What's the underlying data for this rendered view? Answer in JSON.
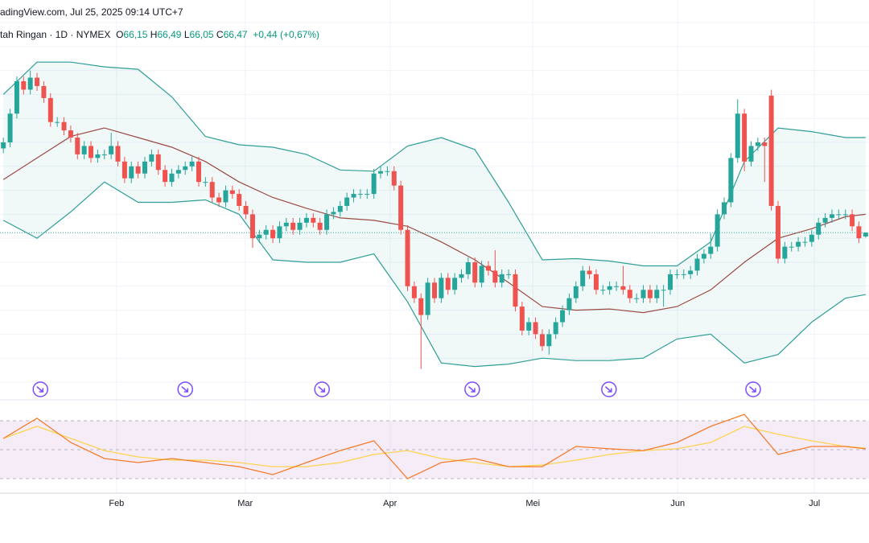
{
  "header": {
    "source": "adingView.com, Jul 25, 2025 09:14 UTC+7",
    "symbol": "tah Ringan · 1D · NYMEX",
    "ohlc": [
      {
        "key": "O",
        "value": {
          "value": 66.15,
          "label": "66,15"
        }
      },
      {
        "key": "H",
        "value": {
          "value": 66.49,
          "label": "66,49"
        }
      },
      {
        "key": "L",
        "value": {
          "value": 66.05,
          "label": "66,05"
        }
      },
      {
        "key": "C",
        "value": {
          "value": 66.47,
          "label": "66,47"
        }
      }
    ],
    "change": {
      "value": 0.44,
      "label": "+0,44"
    },
    "change_pct": {
      "value": 0.67,
      "label": "(+0,67%)"
    }
  },
  "chart_data": [
    {
      "type": "candlestick",
      "up_color": "#26a69a",
      "down_color": "#ef5350",
      "grid": true,
      "xlim": [
        -0.5,
        128.5
      ],
      "ylim": [
        54,
        84
      ],
      "yticks": [
        54,
        56,
        58,
        60,
        62,
        64,
        66,
        68,
        70,
        72,
        74,
        76,
        78,
        80,
        82,
        84
      ],
      "xticks": [
        {
          "value": 16.8,
          "label": "Feb"
        },
        {
          "value": 35.9,
          "label": "Mar"
        },
        {
          "value": 57.4,
          "label": "Apr"
        },
        {
          "value": 78.6,
          "label": "Mei"
        },
        {
          "value": 100.1,
          "label": "Jun"
        },
        {
          "value": 120.4,
          "label": "Jul"
        }
      ],
      "open": [
        73.5,
        74.0,
        76.4,
        79.1,
        78.4,
        79.4,
        78.7,
        77.7,
        75.7,
        75.7,
        75.0,
        74.4,
        73.0,
        73.7,
        72.7,
        73.0,
        73.0,
        73.7,
        72.4,
        71.0,
        72.0,
        71.4,
        72.4,
        73.0,
        71.7,
        70.7,
        71.4,
        71.7,
        72.0,
        72.4,
        70.7,
        70.7,
        69.4,
        69.0,
        70.0,
        69.7,
        68.7,
        68.0,
        66.0,
        66.3,
        66.7,
        66.0,
        67.0,
        67.3,
        66.7,
        67.3,
        67.7,
        67.3,
        66.7,
        68.0,
        68.2,
        68.7,
        69.4,
        69.7,
        69.7,
        69.7,
        71.4,
        71.6,
        71.6,
        70.4,
        66.7,
        62.0,
        61.0,
        59.6,
        62.3,
        61.0,
        62.7,
        61.7,
        62.7,
        63.0,
        64.0,
        62.3,
        63.7,
        63.3,
        62.3,
        63.0,
        63.0,
        60.3,
        58.3,
        59.0,
        58.0,
        57.0,
        58.0,
        59.0,
        60.0,
        61.0,
        62.0,
        63.3,
        63.0,
        61.7,
        61.7,
        62.0,
        62.0,
        61.7,
        61.0,
        61.0,
        61.7,
        61.0,
        61.7,
        61.7,
        63.0,
        63.0,
        63.0,
        63.3,
        64.3,
        64.7,
        65.3,
        68.0,
        69.0,
        72.7,
        76.4,
        72.4,
        73.7,
        74.0,
        77.9,
        68.7,
        64.3,
        65.3,
        65.3,
        65.7,
        65.7,
        66.3,
        67.3,
        67.7,
        68.0,
        68.0,
        68.0,
        67.0,
        66.15
      ],
      "high": [
        74.4,
        76.8,
        79.5,
        79.5,
        80.0,
        79.8,
        79.1,
        78.1,
        76.1,
        76.1,
        75.4,
        74.8,
        74.1,
        74.1,
        73.4,
        73.4,
        74.8,
        74.1,
        72.8,
        72.4,
        72.4,
        72.8,
        73.4,
        73.4,
        72.1,
        71.8,
        72.1,
        72.4,
        72.8,
        72.8,
        71.1,
        71.1,
        69.8,
        70.4,
        70.4,
        70.1,
        69.1,
        68.4,
        66.7,
        67.1,
        67.1,
        67.4,
        67.7,
        67.7,
        67.7,
        68.1,
        68.1,
        67.7,
        68.4,
        68.6,
        69.1,
        69.8,
        70.1,
        70.1,
        70.1,
        71.8,
        72.0,
        72.0,
        72.0,
        70.8,
        67.1,
        62.4,
        61.4,
        62.7,
        62.7,
        63.1,
        63.1,
        63.1,
        63.4,
        64.4,
        64.4,
        64.1,
        64.1,
        65.0,
        63.4,
        63.4,
        63.4,
        60.7,
        59.4,
        59.4,
        58.4,
        58.4,
        59.4,
        60.4,
        61.4,
        62.4,
        63.7,
        63.7,
        63.4,
        62.1,
        62.4,
        62.4,
        63.7,
        62.1,
        61.4,
        62.1,
        62.1,
        62.1,
        62.1,
        63.4,
        63.4,
        63.4,
        63.7,
        64.7,
        65.1,
        66.4,
        68.4,
        69.4,
        73.1,
        77.6,
        76.8,
        74.1,
        74.4,
        74.4,
        78.4,
        69.1,
        65.7,
        65.7,
        66.1,
        66.1,
        66.7,
        67.7,
        68.1,
        68.4,
        68.4,
        68.4,
        68.4,
        67.4,
        66.49
      ],
      "low": [
        73.1,
        73.6,
        76.0,
        78.0,
        78.0,
        78.3,
        77.3,
        75.3,
        75.3,
        74.6,
        74.0,
        72.6,
        72.6,
        72.3,
        72.3,
        72.6,
        72.6,
        72.0,
        70.6,
        70.6,
        71.0,
        71.0,
        72.0,
        71.3,
        70.3,
        70.3,
        71.0,
        71.3,
        71.6,
        70.3,
        70.3,
        69.0,
        68.6,
        68.6,
        69.3,
        68.3,
        67.6,
        65.2,
        65.6,
        65.9,
        65.6,
        65.6,
        66.6,
        66.3,
        66.3,
        66.9,
        66.9,
        66.3,
        66.3,
        67.6,
        67.8,
        68.3,
        69.0,
        69.3,
        69.3,
        69.3,
        71.0,
        71.2,
        70.0,
        66.3,
        61.6,
        60.6,
        55.1,
        59.2,
        60.6,
        60.6,
        61.3,
        61.3,
        62.3,
        62.6,
        61.9,
        61.9,
        62.9,
        61.9,
        61.9,
        62.6,
        59.9,
        57.9,
        57.9,
        57.6,
        56.6,
        56.3,
        57.6,
        58.6,
        59.6,
        60.6,
        61.6,
        62.6,
        61.3,
        61.3,
        61.3,
        61.6,
        61.3,
        60.6,
        60.6,
        60.6,
        60.6,
        60.6,
        60.3,
        61.3,
        62.6,
        62.6,
        62.6,
        62.9,
        63.9,
        64.3,
        64.9,
        67.6,
        68.6,
        72.3,
        71.6,
        72.0,
        73.3,
        70.7,
        68.3,
        63.9,
        63.9,
        64.9,
        64.9,
        65.3,
        65.3,
        65.9,
        66.9,
        67.3,
        67.6,
        67.6,
        66.6,
        65.6,
        66.05
      ],
      "close": [
        74.0,
        76.4,
        79.1,
        78.4,
        79.4,
        78.7,
        77.7,
        75.7,
        75.7,
        75.0,
        74.4,
        73.0,
        73.7,
        72.7,
        73.0,
        73.0,
        73.7,
        72.4,
        71.0,
        72.0,
        71.4,
        72.4,
        73.0,
        71.7,
        70.7,
        71.4,
        71.7,
        72.0,
        72.4,
        70.7,
        70.7,
        69.4,
        69.0,
        70.0,
        69.7,
        68.7,
        68.0,
        66.0,
        66.3,
        66.7,
        66.0,
        67.0,
        67.3,
        66.7,
        67.3,
        67.7,
        67.3,
        66.7,
        68.0,
        68.2,
        68.7,
        69.4,
        69.7,
        69.7,
        69.7,
        71.4,
        71.6,
        71.6,
        70.4,
        66.7,
        62.0,
        61.0,
        59.6,
        62.3,
        61.0,
        62.7,
        61.7,
        62.7,
        63.0,
        64.0,
        62.3,
        63.7,
        63.3,
        62.3,
        63.0,
        63.0,
        60.3,
        58.3,
        59.0,
        58.0,
        57.0,
        58.0,
        59.0,
        60.0,
        61.0,
        62.0,
        63.3,
        63.0,
        61.7,
        61.7,
        62.0,
        62.0,
        61.7,
        61.0,
        61.0,
        61.7,
        61.0,
        61.7,
        61.7,
        63.0,
        63.0,
        63.0,
        63.3,
        64.3,
        64.7,
        65.3,
        68.0,
        69.0,
        72.7,
        76.4,
        72.4,
        73.7,
        74.0,
        73.7,
        68.7,
        64.3,
        65.3,
        65.3,
        65.7,
        65.7,
        66.3,
        67.3,
        67.7,
        68.0,
        68.0,
        68.0,
        67.0,
        66.0,
        66.47
      ],
      "band_x": [
        0,
        5,
        10,
        15,
        20,
        25,
        30,
        35,
        40,
        45,
        50,
        55,
        60,
        65,
        70,
        75,
        80,
        85,
        90,
        95,
        100,
        105,
        110,
        115,
        120,
        125,
        128
      ],
      "band_fill": "rgba(38,166,154,0.07)",
      "upper": {
        "color": "#2f9e97",
        "values": [
          78.0,
          80.7,
          80.7,
          80.3,
          80.1,
          77.8,
          74.5,
          73.8,
          73.6,
          73.0,
          71.7,
          71.6,
          73.7,
          74.4,
          73.4,
          69.0,
          64.2,
          64.3,
          64.1,
          63.7,
          63.7,
          65.7,
          72.4,
          75.2,
          74.9,
          74.4,
          74.4
        ]
      },
      "middle": {
        "color": "#9c4a44",
        "values": [
          70.9,
          72.7,
          74.5,
          75.2,
          74.4,
          73.6,
          72.4,
          70.7,
          69.4,
          68.5,
          67.7,
          67.5,
          67.0,
          65.7,
          64.2,
          62.3,
          60.3,
          60.0,
          60.1,
          59.8,
          60.3,
          61.7,
          64.0,
          66.0,
          66.8,
          67.8,
          68.0
        ]
      },
      "lower": {
        "color": "#2f9e97",
        "values": [
          67.5,
          66.0,
          68.2,
          70.7,
          69.0,
          69.0,
          69.2,
          68.0,
          64.2,
          64.0,
          64.0,
          64.7,
          60.7,
          55.6,
          55.3,
          55.5,
          56.0,
          55.8,
          55.8,
          56.0,
          57.6,
          58.0,
          55.6,
          56.3,
          59.0,
          61.0,
          61.3
        ]
      },
      "events": [
        5.5,
        27.0,
        47.3,
        69.6,
        89.9,
        111.3
      ],
      "event_color": "#7b4dff"
    },
    {
      "type": "line",
      "xlim": [
        -0.5,
        128.5
      ],
      "ylim": [
        20,
        80
      ],
      "levels": [
        30,
        50,
        70
      ],
      "band_fill": "rgba(156,39,176,0.09)",
      "x": [
        0,
        5,
        10,
        15,
        20,
        25,
        30,
        35,
        40,
        45,
        50,
        55,
        60,
        65,
        70,
        75,
        80,
        85,
        90,
        95,
        100,
        105,
        110,
        115,
        120,
        125,
        128
      ],
      "rsi": {
        "color": "#f57c2a",
        "values": [
          57.8,
          71.7,
          55.0,
          43.9,
          41.1,
          43.9,
          41.1,
          38.3,
          32.8,
          41.1,
          49.4,
          56.1,
          30.0,
          41.1,
          43.9,
          38.3,
          38.3,
          52.2,
          50.6,
          49.4,
          55.0,
          66.1,
          74.4,
          46.7,
          52.2,
          52.2,
          50.6
        ]
      },
      "rsi_ma": {
        "color": "#fdd44f",
        "values": [
          57.8,
          66.1,
          57.8,
          49.4,
          45.0,
          42.8,
          42.8,
          41.1,
          38.3,
          38.3,
          41.1,
          46.7,
          49.4,
          43.9,
          41.1,
          38.3,
          39.4,
          42.8,
          46.7,
          49.4,
          50.6,
          55.0,
          66.1,
          60.6,
          56.1,
          52.2,
          51.1
        ]
      }
    }
  ]
}
